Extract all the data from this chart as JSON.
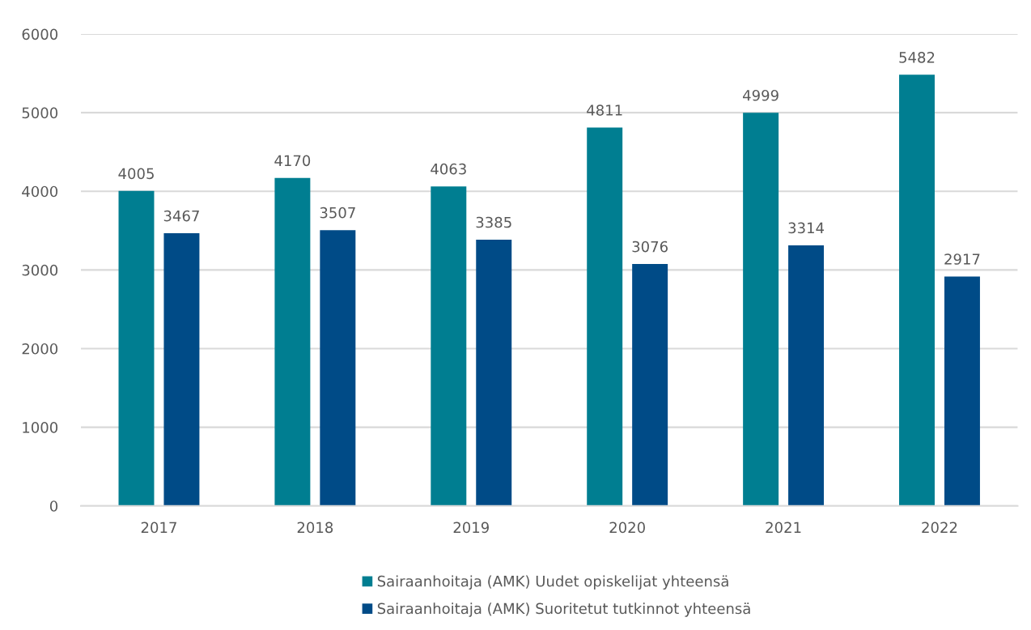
{
  "chart_data": {
    "type": "bar",
    "categories": [
      "2017",
      "2018",
      "2019",
      "2020",
      "2021",
      "2022"
    ],
    "series": [
      {
        "name": "Sairaanhoitaja (AMK) Uudet opiskelijat yhteensä",
        "color": "#007e91",
        "values": [
          4005,
          4170,
          4063,
          4811,
          4999,
          5482
        ]
      },
      {
        "name": "Sairaanhoitaja (AMK) Suoritetut tutkinnot yhteensä",
        "color": "#004b87",
        "values": [
          3467,
          3507,
          3385,
          3076,
          3314,
          2917
        ]
      }
    ],
    "ylim": [
      0,
      6000
    ],
    "yticks": [
      0,
      1000,
      2000,
      3000,
      4000,
      5000,
      6000
    ],
    "grid": "y",
    "legend": "bottom",
    "data_labels": true
  }
}
